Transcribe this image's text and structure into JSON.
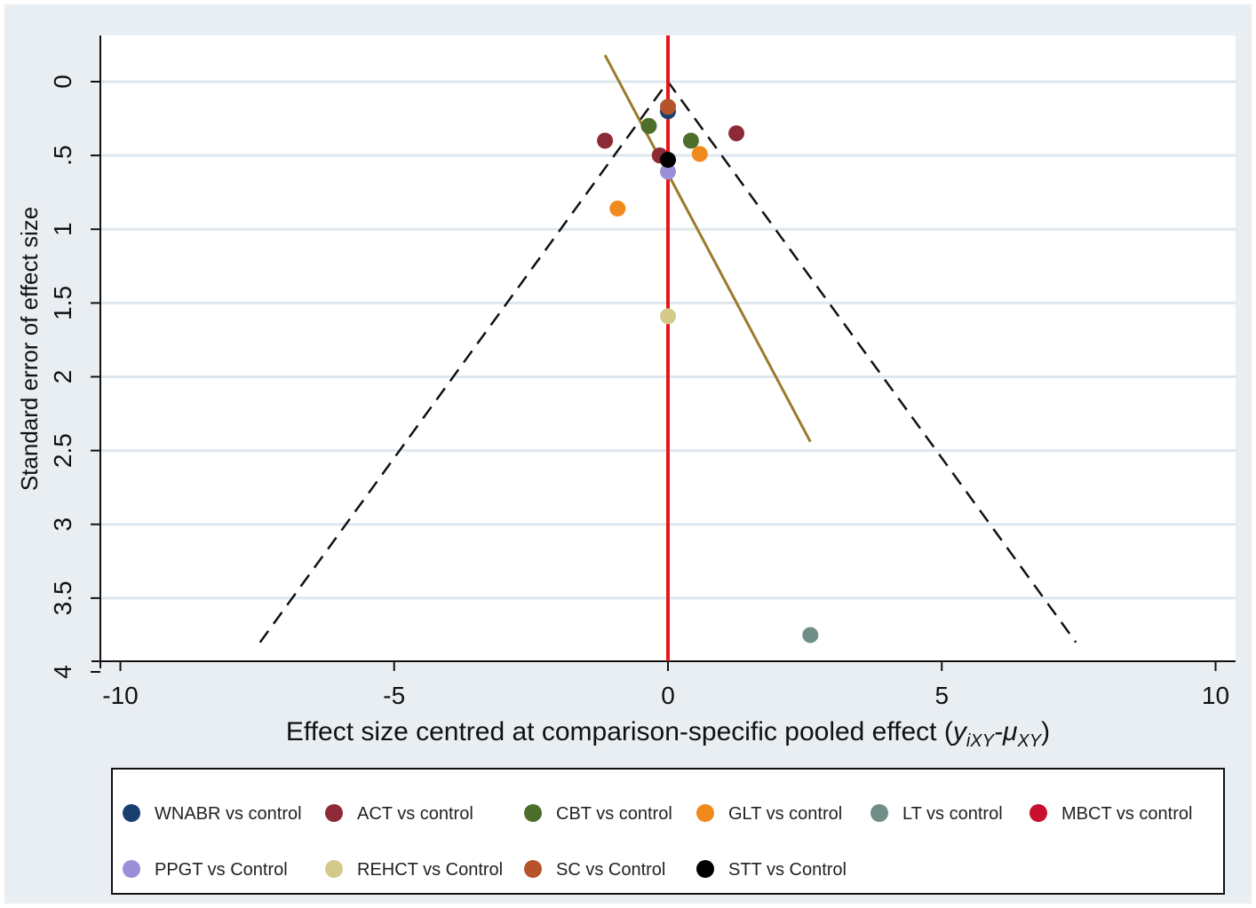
{
  "chart_data": {
    "type": "scatter",
    "xlabel": "Effect size centred at comparison-specific pooled effect (",
    "xlabel_math": "y",
    "xlabel_sub1": "iXY",
    "xlabel_mid": "-μ",
    "xlabel_sub2": "XY",
    "xlabel_end": ")",
    "ylabel": "Standard error of effect size",
    "xlim": [
      -10.2,
      10.2
    ],
    "ylim": [
      4,
      -0.35
    ],
    "y_inverted": true,
    "x_ticks": [
      -10,
      -5,
      0,
      5,
      10
    ],
    "x_tick_labels": [
      "-10",
      "-5",
      "0",
      "5",
      "10"
    ],
    "y_ticks": [
      0,
      0.5,
      1,
      1.5,
      2,
      2.5,
      3,
      3.5,
      4
    ],
    "y_tick_labels": [
      "0",
      ".5",
      "1",
      "1.5",
      "2",
      "2.5",
      "3",
      "3.5",
      "4"
    ],
    "grid": true,
    "legend_position": "bottom",
    "funnel": {
      "apex": [
        0,
        0
      ],
      "left_end": [
        -7.45,
        3.8
      ],
      "right_end": [
        7.45,
        3.8
      ]
    },
    "reference_line_x": 0,
    "fitted_line": {
      "start": [
        -1.15,
        -0.18
      ],
      "end": [
        2.6,
        2.44
      ]
    },
    "series": [
      {
        "name": "WNABR vs control",
        "color": "#1a3f6f",
        "points": [
          [
            0,
            0.2
          ]
        ]
      },
      {
        "name": "ACT vs control",
        "color": "#8c2a35",
        "points": [
          [
            -1.15,
            0.4
          ],
          [
            1.25,
            0.35
          ],
          [
            -0.15,
            0.5
          ]
        ]
      },
      {
        "name": "CBT vs control",
        "color": "#4d6e2a",
        "points": [
          [
            -0.35,
            0.3
          ],
          [
            0.42,
            0.4
          ]
        ]
      },
      {
        "name": "GLT vs control",
        "color": "#f08a1c",
        "points": [
          [
            0.58,
            0.49
          ],
          [
            -0.92,
            0.86
          ]
        ]
      },
      {
        "name": "LT vs control",
        "color": "#6e8f87",
        "points": [
          [
            2.6,
            3.75
          ]
        ]
      },
      {
        "name": "MBCT vs control",
        "color": "#c8102e",
        "points": []
      },
      {
        "name": "PPGT vs Control",
        "color": "#9a90d8",
        "points": [
          [
            0,
            0.61
          ]
        ]
      },
      {
        "name": "REHCT vs Control",
        "color": "#d2c98a",
        "points": [
          [
            0,
            1.59
          ]
        ]
      },
      {
        "name": "SC vs Control",
        "color": "#b5532a",
        "points": [
          [
            0,
            0.17
          ]
        ]
      },
      {
        "name": "STT vs Control",
        "color": "#000000",
        "points": [
          [
            0,
            0.53
          ]
        ]
      }
    ]
  }
}
